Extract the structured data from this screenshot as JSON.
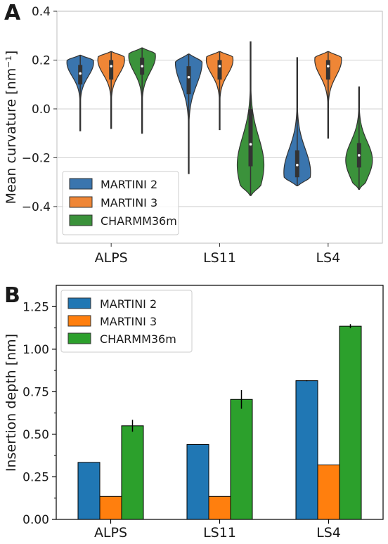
{
  "chart_data": [
    {
      "type": "violin",
      "panel_label": "A",
      "ylabel": "Mean curvature [nm⁻¹]",
      "ylim": [
        -0.55,
        0.4
      ],
      "yticks": [
        -0.4,
        -0.2,
        0.0,
        0.2,
        0.4
      ],
      "ytick_labels": [
        "−0.4",
        "−0.2",
        "0.0",
        "0.2",
        "0.4"
      ],
      "grid": "horizontal",
      "legend_position": "lower-left",
      "categories": [
        "ALPS",
        "LS11",
        "LS4"
      ],
      "series": [
        {
          "name": "MARTINI 2",
          "color": "#3a75ae",
          "violins": [
            {
              "min": -0.09,
              "max": 0.22,
              "mode": 0.19,
              "q1": 0.1,
              "median": 0.145,
              "q3": 0.18
            },
            {
              "min": -0.265,
              "max": 0.225,
              "mode": 0.19,
              "q1": 0.06,
              "median": 0.13,
              "q3": 0.175
            },
            {
              "min": -0.315,
              "max": 0.21,
              "mode": -0.26,
              "q1": -0.28,
              "median": -0.23,
              "q3": -0.17
            }
          ]
        },
        {
          "name": "MARTINI 3",
          "color": "#ef8636",
          "violins": [
            {
              "min": -0.08,
              "max": 0.235,
              "mode": 0.2,
              "q1": 0.12,
              "median": 0.175,
              "q3": 0.2
            },
            {
              "min": -0.085,
              "max": 0.235,
              "mode": 0.2,
              "q1": 0.12,
              "median": 0.175,
              "q3": 0.2
            },
            {
              "min": -0.12,
              "max": 0.235,
              "mode": 0.2,
              "q1": 0.12,
              "median": 0.175,
              "q3": 0.2
            }
          ]
        },
        {
          "name": "CHARMM36m",
          "color": "#3b923b",
          "violins": [
            {
              "min": -0.1,
              "max": 0.25,
              "mode": 0.215,
              "q1": 0.14,
              "median": 0.175,
              "q3": 0.21
            },
            {
              "min": -0.355,
              "max": 0.275,
              "mode": -0.23,
              "q1": -0.235,
              "median": -0.145,
              "q3": 0.0
            },
            {
              "min": -0.33,
              "max": 0.09,
              "mode": -0.21,
              "q1": -0.24,
              "median": -0.19,
              "q3": -0.14
            }
          ]
        }
      ]
    },
    {
      "type": "bar",
      "panel_label": "B",
      "ylabel": "Insertion depth [nm]",
      "ylim": [
        0.0,
        1.375
      ],
      "yticks": [
        0.0,
        0.25,
        0.5,
        0.75,
        1.0,
        1.25
      ],
      "ytick_labels": [
        "0.00",
        "0.25",
        "0.50",
        "0.75",
        "1.00",
        "1.25"
      ],
      "grid": "none",
      "legend_position": "upper-left",
      "categories": [
        "ALPS",
        "LS11",
        "LS4"
      ],
      "series": [
        {
          "name": "MARTINI 2",
          "color": "#2077b4",
          "values": [
            0.335,
            0.44,
            0.815
          ],
          "errors": [
            0.0,
            0.0,
            0.003
          ]
        },
        {
          "name": "MARTINI 3",
          "color": "#ff7f0e",
          "values": [
            0.135,
            0.135,
            0.32
          ],
          "errors": [
            0.0,
            0.0,
            0.0
          ]
        },
        {
          "name": "CHARMM36m",
          "color": "#2ca02c",
          "values": [
            0.55,
            0.705,
            1.135
          ],
          "errors": [
            0.035,
            0.055,
            0.012
          ]
        }
      ]
    }
  ]
}
